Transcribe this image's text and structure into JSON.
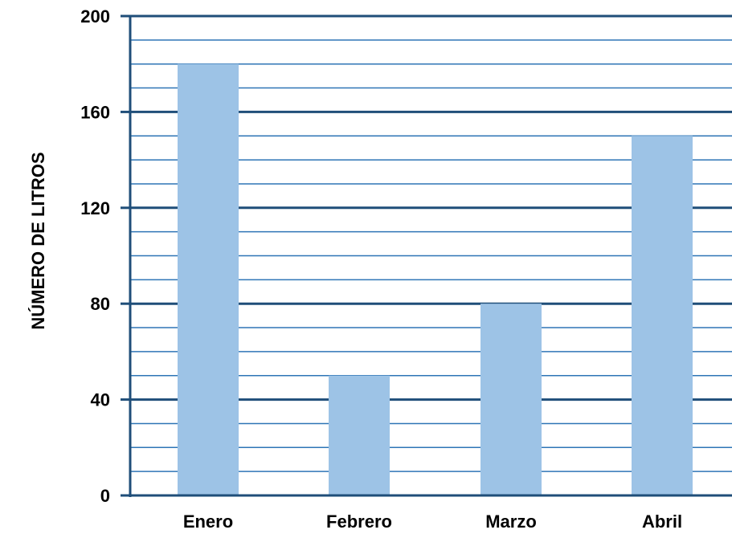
{
  "chart_data": {
    "type": "bar",
    "categories": [
      "Enero",
      "Febrero",
      "Marzo",
      "Abril"
    ],
    "values": [
      180,
      50,
      80,
      150
    ],
    "title": "",
    "xlabel": "",
    "ylabel": "NÚMERO DE LITROS",
    "ylim": [
      0,
      200
    ],
    "yticks": [
      "0",
      "40",
      "80",
      "120",
      "160",
      "200"
    ],
    "minor_grid_step": 10,
    "grid": true,
    "legend": "none"
  },
  "colors": {
    "bar": "#9dc3e6",
    "axis": "#1f4e79",
    "major_grid": "#1f4e79",
    "minor_grid": "#2e75b6"
  }
}
